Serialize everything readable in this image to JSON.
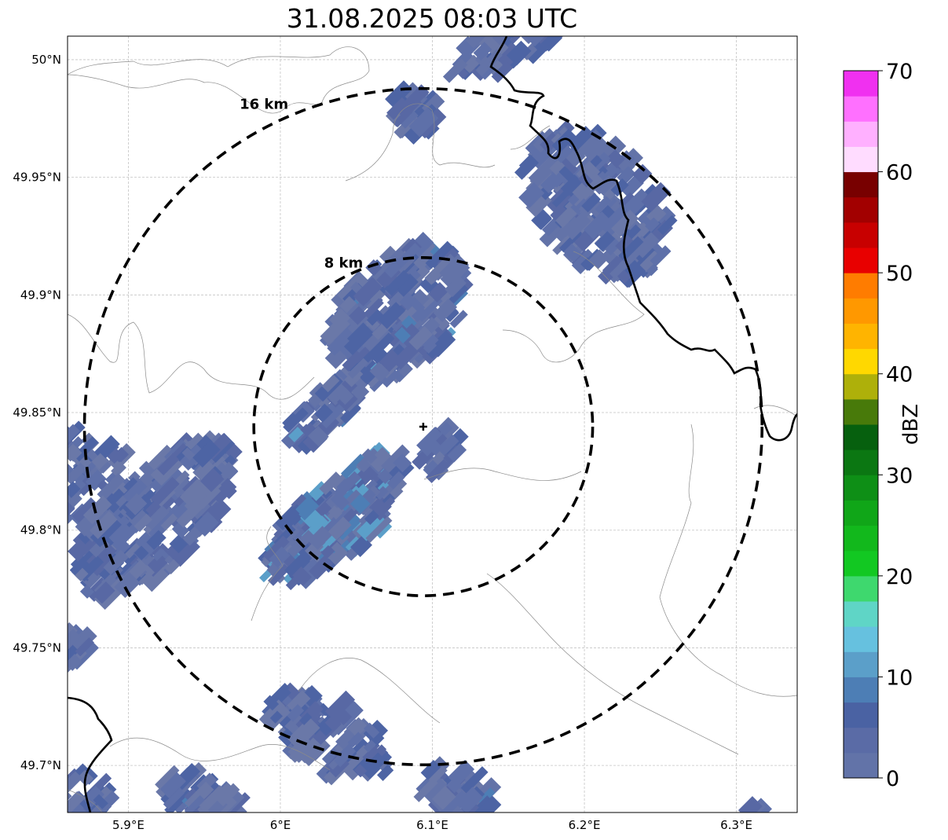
{
  "title": "31.08.2025 08:03 UTC",
  "map": {
    "lon_range": [
      5.86,
      6.34
    ],
    "lat_range": [
      49.68,
      50.01
    ],
    "center": {
      "lon": 6.094,
      "lat": 49.844
    },
    "x_ticks": [
      {
        "value": 5.9,
        "label": "5.9°E"
      },
      {
        "value": 6.0,
        "label": "6°E"
      },
      {
        "value": 6.1,
        "label": "6.1°E"
      },
      {
        "value": 6.2,
        "label": "6.2°E"
      },
      {
        "value": 6.3,
        "label": "6.3°E"
      }
    ],
    "y_ticks": [
      {
        "value": 50.0,
        "label": "50°N"
      },
      {
        "value": 49.95,
        "label": "49.95°N"
      },
      {
        "value": 49.9,
        "label": "49.9°N"
      },
      {
        "value": 49.85,
        "label": "49.85°N"
      },
      {
        "value": 49.8,
        "label": "49.8°N"
      },
      {
        "value": 49.75,
        "label": "49.75°N"
      },
      {
        "value": 49.7,
        "label": "49.7°N"
      }
    ],
    "rings": [
      {
        "label": "8 km",
        "radius_km": 8
      },
      {
        "label": "16 km",
        "radius_km": 16
      }
    ],
    "grid": true
  },
  "colorbar": {
    "label": "dBZ",
    "min": 0,
    "max": 70,
    "ticks": [
      {
        "value": 0,
        "label": "0"
      },
      {
        "value": 10,
        "label": "10"
      },
      {
        "value": 20,
        "label": "20"
      },
      {
        "value": 30,
        "label": "30"
      },
      {
        "value": 40,
        "label": "40"
      },
      {
        "value": 50,
        "label": "50"
      },
      {
        "value": 60,
        "label": "60"
      },
      {
        "value": 70,
        "label": "70"
      }
    ],
    "colors": [
      "#6273a8",
      "#5a6ba6",
      "#4a62a3",
      "#4d7eb5",
      "#5b9fc9",
      "#66c1df",
      "#5fd5c6",
      "#3ed86e",
      "#12c822",
      "#12b81c",
      "#10a618",
      "#0e8f16",
      "#0b7712",
      "#06600e",
      "#487a0a",
      "#aeb00a",
      "#ffd800",
      "#ffb400",
      "#ff9800",
      "#ff7c00",
      "#e80000",
      "#c80000",
      "#a20000",
      "#780000",
      "#ffdcff",
      "#ffb0ff",
      "#ff70ff",
      "#f030f0"
    ]
  },
  "reflectivity_cells": [
    {
      "lon": 5.93,
      "lat": 49.81,
      "dbz": 2
    },
    {
      "lon": 5.95,
      "lat": 49.83,
      "dbz": 5
    },
    {
      "lon": 6.05,
      "lat": 49.81,
      "dbz": 12
    },
    {
      "lon": 6.06,
      "lat": 49.89,
      "dbz": 5
    },
    {
      "lon": 6.04,
      "lat": 49.86,
      "dbz": 10
    },
    {
      "lon": 6.2,
      "lat": 49.93,
      "dbz": 2
    },
    {
      "lon": 6.03,
      "lat": 49.7,
      "dbz": 3
    }
  ]
}
